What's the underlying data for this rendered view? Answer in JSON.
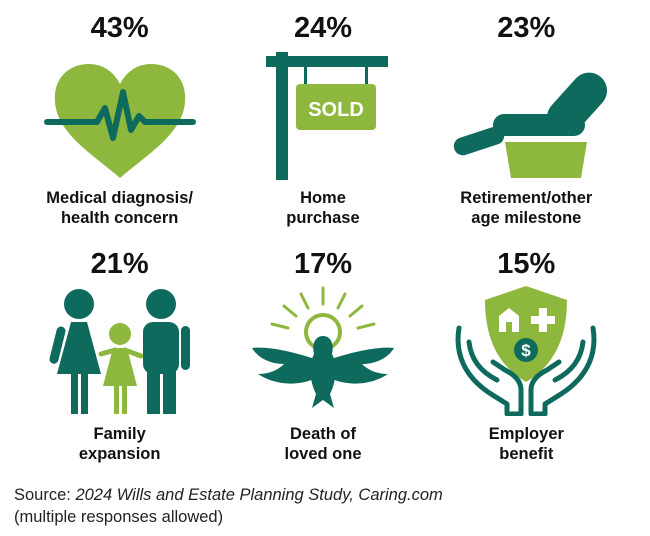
{
  "colors": {
    "dark": "#0f6a5e",
    "light": "#8db83d"
  },
  "stats": [
    {
      "percent": "43%",
      "label_lines": [
        "Medical diagnosis/",
        "health concern"
      ],
      "value": 43,
      "icon": "heart-pulse-icon"
    },
    {
      "percent": "24%",
      "label_lines": [
        "Home",
        "purchase"
      ],
      "value": 24,
      "icon": "sold-sign-icon",
      "sign_text": "SOLD"
    },
    {
      "percent": "23%",
      "label_lines": [
        "Retirement/other",
        "age milestone"
      ],
      "value": 23,
      "icon": "recliner-chair-icon"
    },
    {
      "percent": "21%",
      "label_lines": [
        "Family",
        "expansion"
      ],
      "value": 21,
      "icon": "family-icon"
    },
    {
      "percent": "17%",
      "label_lines": [
        "Death of",
        "loved one"
      ],
      "value": 17,
      "icon": "dove-icon"
    },
    {
      "percent": "15%",
      "label_lines": [
        "Employer",
        "benefit"
      ],
      "value": 15,
      "icon": "benefit-shield-hands-icon"
    }
  ],
  "source": {
    "prefix": "Source: ",
    "title": "2024 Wills and Estate Planning Study, Caring.com",
    "note": "(multiple responses allowed)"
  }
}
